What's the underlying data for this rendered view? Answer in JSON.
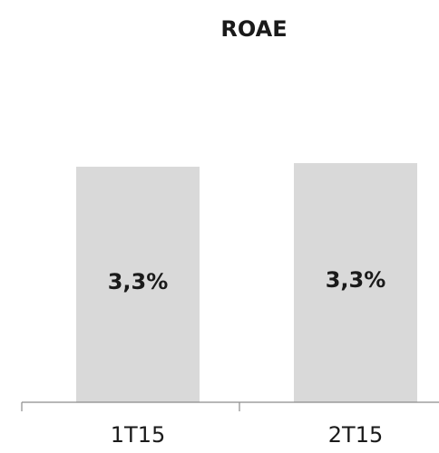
{
  "chart_data": {
    "type": "bar",
    "title": "ROAE",
    "categories": [
      "1T15",
      "2T15"
    ],
    "values": [
      3.3,
      3.35
    ],
    "data_labels": [
      "3,3%",
      "3,3%"
    ],
    "xlabel": "",
    "ylabel": "",
    "grid": false,
    "legend": "none",
    "colors": {
      "bar": "#d9d9d9",
      "axis": "#8c8c8c",
      "text": "#1a1a1a"
    }
  }
}
